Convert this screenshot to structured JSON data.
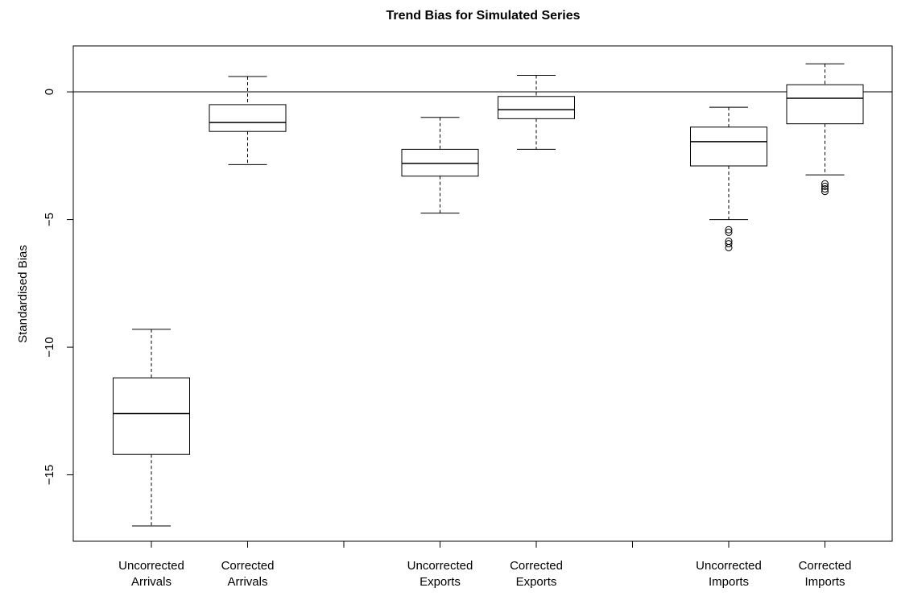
{
  "chart_data": {
    "type": "box",
    "title": "Trend Bias for Simulated Series",
    "xlabel": "",
    "ylabel": "Standardised Bias",
    "ylim": [
      -17.6,
      1.8
    ],
    "yticks": [
      0,
      -5,
      -10,
      -15
    ],
    "reference_line": 0,
    "colors": {
      "box_fill": "#ffffff",
      "stroke": "#000000"
    },
    "groups": [
      {
        "boxes": [
          {
            "label": [
              "Uncorrected",
              "Arrivals"
            ],
            "min": -17.0,
            "q1": -14.2,
            "median": -12.6,
            "q3": -11.2,
            "max": -9.3,
            "outliers": []
          },
          {
            "label": [
              "Corrected",
              "Arrivals"
            ],
            "min": -2.85,
            "q1": -1.55,
            "median": -1.2,
            "q3": -0.5,
            "max": 0.6,
            "outliers": []
          }
        ]
      },
      {
        "boxes": [
          {
            "label": [
              "Uncorrected",
              "Exports"
            ],
            "min": -4.75,
            "q1": -3.3,
            "median": -2.8,
            "q3": -2.25,
            "max": -1.0,
            "outliers": []
          },
          {
            "label": [
              "Corrected",
              "Exports"
            ],
            "min": -2.25,
            "q1": -1.05,
            "median": -0.7,
            "q3": -0.18,
            "max": 0.65,
            "outliers": []
          }
        ]
      },
      {
        "boxes": [
          {
            "label": [
              "Uncorrected",
              "Imports"
            ],
            "min": -5.0,
            "q1": -2.9,
            "median": -1.95,
            "q3": -1.38,
            "max": -0.6,
            "outliers": [
              -5.4,
              -5.5,
              -5.85,
              -5.95,
              -6.1
            ]
          },
          {
            "label": [
              "Corrected",
              "Imports"
            ],
            "min": -3.25,
            "q1": -1.25,
            "median": -0.25,
            "q3": 0.28,
            "max": 1.1,
            "outliers": [
              -3.6,
              -3.7,
              -3.8,
              -3.9
            ]
          }
        ]
      }
    ]
  }
}
